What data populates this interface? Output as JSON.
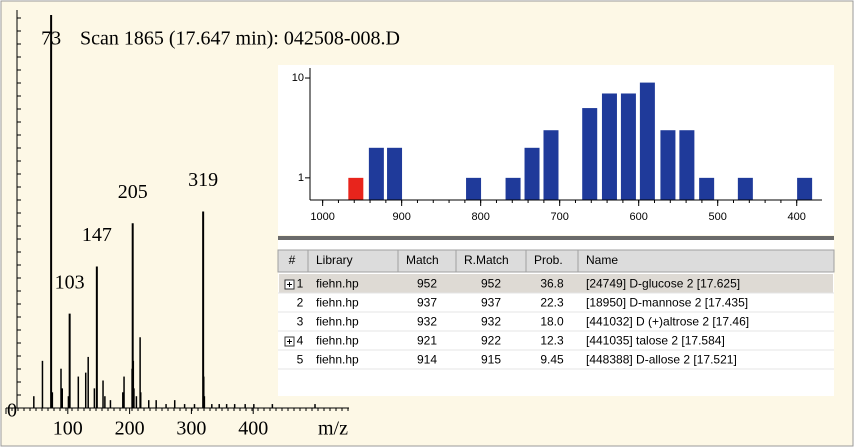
{
  "chart_data": [
    {
      "type": "spectrum",
      "title": "Scan 1865 (17.647 min): 042508-008.D",
      "xlabel": "m/z",
      "peaks": {
        "x": [
          73,
          103,
          147,
          205,
          319
        ],
        "values": [
          100,
          24,
          36,
          47,
          50
        ]
      },
      "minor_peaks": {
        "x": [
          45,
          59,
          75,
          89,
          91,
          101,
          117,
          129,
          133,
          143,
          157,
          160,
          169,
          189,
          191,
          204,
          206,
          207,
          211,
          217,
          218,
          231,
          243,
          259,
          273,
          289,
          305,
          320,
          321,
          333,
          345,
          357,
          370,
          387,
          401,
          431,
          500
        ],
        "values": [
          3,
          12,
          4,
          10,
          5,
          3,
          8,
          9,
          13,
          5,
          7,
          3,
          2,
          4,
          8,
          10,
          12,
          5,
          3,
          18,
          4,
          2,
          2,
          1,
          2,
          1,
          1,
          8,
          3,
          1,
          1,
          1,
          1,
          1,
          1,
          1,
          1
        ]
      },
      "xlim": [
        0,
        555
      ],
      "ylim": [
        0,
        100
      ],
      "xticks": [
        0,
        100,
        200,
        300,
        400
      ],
      "color": "#000000"
    },
    {
      "type": "histogram-bars",
      "log_scale": true,
      "x": [
        958,
        932,
        909,
        809,
        759,
        735,
        711,
        662,
        637,
        613,
        589,
        563,
        539,
        514,
        465,
        390
      ],
      "values": [
        1,
        2,
        2,
        1,
        1,
        2,
        3,
        5,
        7,
        7,
        9,
        3,
        3,
        1,
        1,
        1
      ],
      "colors": [
        "#e8241c",
        "#1f3a9a",
        "#1f3a9a",
        "#1f3a9a",
        "#1f3a9a",
        "#1f3a9a",
        "#1f3a9a",
        "#1f3a9a",
        "#1f3a9a",
        "#1f3a9a",
        "#1f3a9a",
        "#1f3a9a",
        "#1f3a9a",
        "#1f3a9a",
        "#1f3a9a",
        "#1f3a9a"
      ],
      "xlim": [
        1016,
        368
      ],
      "ylim": [
        0.6,
        12.6
      ],
      "xticks": [
        1000,
        900,
        800,
        700,
        600,
        500,
        400
      ],
      "yticks": [
        1,
        10
      ]
    }
  ],
  "table": {
    "columns": [
      "#",
      "Library",
      "Match",
      "R.Match",
      "Prob.",
      "Name"
    ],
    "expandable": [
      true,
      false,
      false,
      true,
      false
    ],
    "rows": [
      [
        "1",
        "fiehn.hp",
        "952",
        "952",
        "36.8",
        "[24749] D-glucose 2 [17.625]"
      ],
      [
        "2",
        "fiehn.hp",
        "937",
        "937",
        "22.3",
        "[18950] D-mannose 2 [17.435]"
      ],
      [
        "3",
        "fiehn.hp",
        "932",
        "932",
        "18.0",
        "[441032] D (+)altrose 2 [17.46]"
      ],
      [
        "4",
        "fiehn.hp",
        "921",
        "922",
        "12.3",
        "[441035] talose 2 [17.584]"
      ],
      [
        "5",
        "fiehn.hp",
        "914",
        "915",
        "9.45",
        "[448388] D-allose 2 [17.521]"
      ]
    ]
  }
}
